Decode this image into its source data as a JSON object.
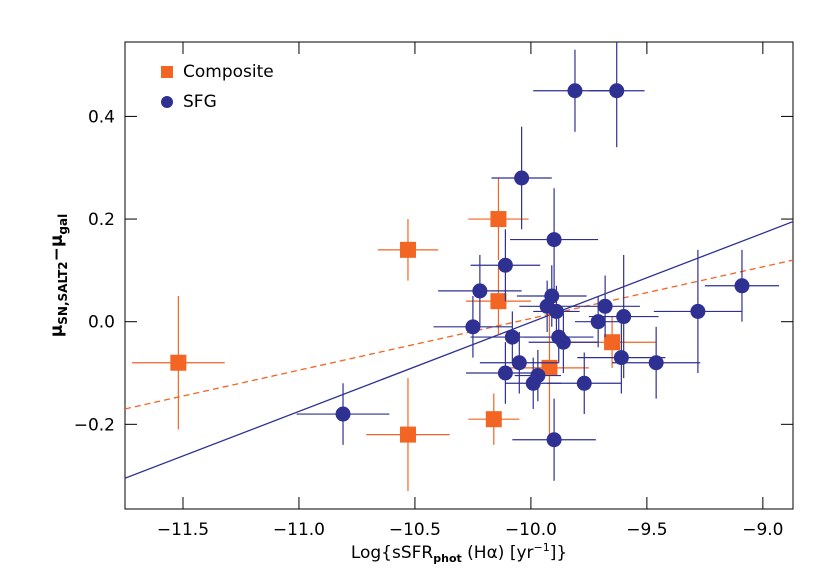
{
  "chart_data": {
    "type": "scatter",
    "x_label": [
      "Log{sSFR",
      "phot",
      " (Hα) [yr",
      "−1",
      "]}"
    ],
    "y_label": [
      "μ",
      "SN,SALT2",
      "−μ",
      "gal"
    ],
    "xlim": [
      -11.75,
      -8.87
    ],
    "ylim": [
      -0.365,
      0.545
    ],
    "xticks": [
      {
        "value": -11.5,
        "label": "−11.5"
      },
      {
        "value": -11.0,
        "label": "−11.0"
      },
      {
        "value": -10.5,
        "label": "−10.5"
      },
      {
        "value": -10.0,
        "label": "−10.0"
      },
      {
        "value": -9.5,
        "label": "−9.5"
      },
      {
        "value": -9.0,
        "label": "−9.0"
      }
    ],
    "yticks": [
      {
        "value": -0.2,
        "label": "−0.2"
      },
      {
        "value": 0.0,
        "label": "0.0"
      },
      {
        "value": 0.2,
        "label": "0.2"
      },
      {
        "value": 0.4,
        "label": "0.4"
      }
    ],
    "legend": "upper left",
    "series": [
      {
        "name": "Composite",
        "color": "#f26522",
        "marker": "square",
        "x": [
          -11.52,
          -10.53,
          -10.53,
          -10.14,
          -10.14,
          -10.16,
          -9.92,
          -9.65
        ],
        "values": [
          -0.08,
          0.14,
          -0.22,
          0.2,
          0.04,
          -0.19,
          -0.09,
          -0.04
        ],
        "xerr": [
          0.2,
          0.13,
          0.18,
          0.13,
          0.14,
          0.11,
          0.17,
          0.19
        ],
        "yerr": [
          0.13,
          0.06,
          0.11,
          0.08,
          0.065,
          0.05,
          0.14,
          0.05
        ]
      },
      {
        "name": "SFG",
        "color": "#2e3192",
        "marker": "circle",
        "x": [
          -9.81,
          -9.63,
          -10.04,
          -9.9,
          -10.11,
          -10.22,
          -9.91,
          -9.93,
          -9.68,
          -9.89,
          -10.25,
          -10.08,
          -9.88,
          -9.86,
          -9.71,
          -9.6,
          -9.28,
          -9.09,
          -10.05,
          -10.11,
          -9.99,
          -9.97,
          -9.77,
          -9.61,
          -9.46,
          -9.9,
          -10.81
        ],
        "values": [
          0.45,
          0.45,
          0.28,
          0.16,
          0.11,
          0.06,
          0.05,
          0.03,
          0.03,
          0.02,
          -0.01,
          -0.03,
          -0.03,
          -0.04,
          0.0,
          0.01,
          0.02,
          0.07,
          -0.08,
          -0.1,
          -0.12,
          -0.105,
          -0.12,
          -0.07,
          -0.08,
          -0.23,
          -0.18
        ],
        "xerr": [
          0.18,
          0.12,
          0.13,
          0.19,
          0.15,
          0.18,
          0.15,
          0.12,
          0.15,
          0.1,
          0.17,
          0.18,
          0.15,
          0.15,
          0.1,
          0.15,
          0.19,
          0.16,
          0.17,
          0.17,
          0.12,
          0.1,
          0.16,
          0.19,
          0.19,
          0.18,
          0.2
        ],
        "yerr": [
          0.08,
          0.11,
          0.1,
          0.1,
          0.07,
          0.07,
          0.06,
          0.05,
          0.06,
          0.05,
          0.06,
          0.05,
          0.05,
          0.06,
          0.05,
          0.12,
          0.12,
          0.07,
          0.06,
          0.06,
          0.05,
          0.05,
          0.06,
          0.07,
          0.07,
          0.08,
          0.06
        ]
      }
    ],
    "lines": [
      {
        "color": "#2e3192",
        "dashed": false,
        "x": [
          -11.75,
          -8.87
        ],
        "y": [
          -0.305,
          0.195
        ]
      },
      {
        "color": "#f26522",
        "dashed": true,
        "x": [
          -11.75,
          -8.87
        ],
        "y": [
          -0.17,
          0.12
        ]
      }
    ]
  }
}
